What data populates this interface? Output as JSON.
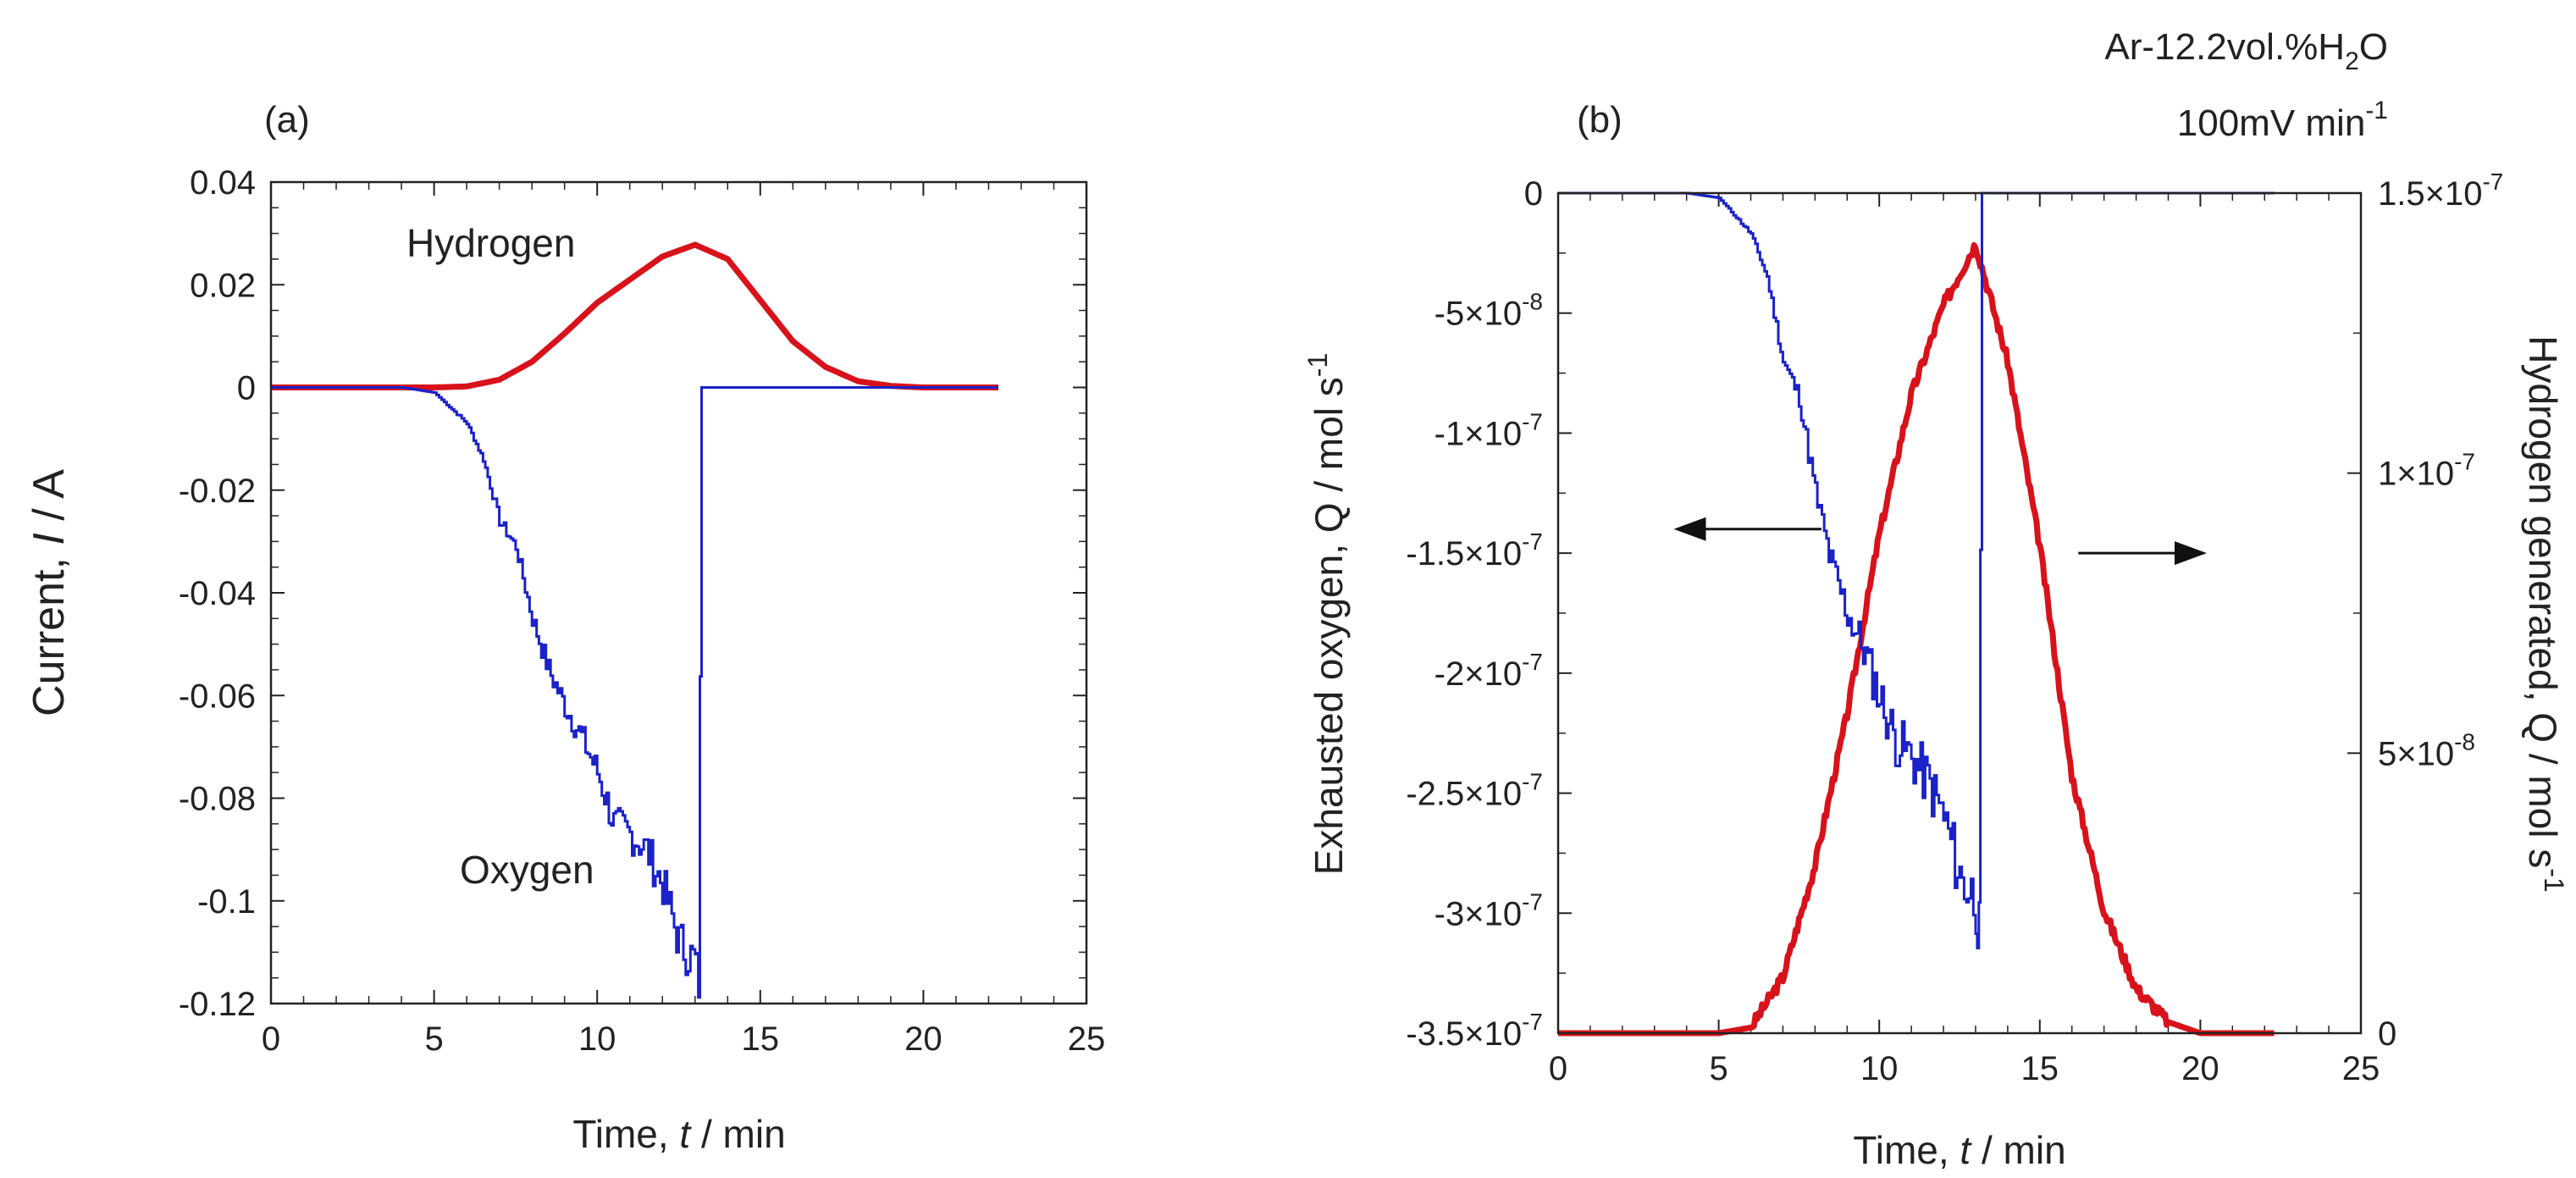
{
  "figure": {
    "conditions": {
      "gas_prefix": "Ar-12.2vol.%H",
      "gas_sub": "2",
      "gas_suffix": "O",
      "rate_prefix": "100mV min",
      "rate_sup": "-1"
    }
  },
  "colors": {
    "hydrogen": "#d8121b",
    "oxygen": "#1a22c8",
    "axis": "#222222"
  },
  "chart_data": [
    {
      "id": "a",
      "type": "line",
      "panel_label": "(a)",
      "xlabel": {
        "prefix": "Time, ",
        "var": "t",
        "suffix": " / min"
      },
      "ylabel": {
        "prefix": "Current, ",
        "var": "I",
        "suffix": " / A"
      },
      "xlim": [
        0,
        25
      ],
      "ylim": [
        -0.12,
        0.04
      ],
      "xticks": [
        0,
        5,
        10,
        15,
        20,
        25
      ],
      "xtick_labels": [
        "0",
        "5",
        "10",
        "15",
        "20",
        "25"
      ],
      "yticks": [
        0.04,
        0.02,
        0,
        -0.02,
        -0.04,
        -0.06,
        -0.08,
        -0.1,
        -0.12
      ],
      "ytick_labels": [
        "0.04",
        "0.02",
        "0",
        "-0.02",
        "-0.04",
        "-0.06",
        "-0.08",
        "-0.1",
        "-0.12"
      ],
      "series": [
        {
          "name": "Hydrogen",
          "color": "#d8121b",
          "x": [
            0,
            5,
            6,
            7,
            8,
            9,
            10,
            11,
            12,
            13,
            14,
            15,
            16,
            17,
            18,
            19,
            20,
            21,
            22.3
          ],
          "y": [
            0,
            0,
            0.0002,
            0.0015,
            0.005,
            0.0105,
            0.0165,
            0.021,
            0.0255,
            0.0278,
            0.025,
            0.017,
            0.009,
            0.004,
            0.0012,
            0.0003,
            0,
            0,
            0
          ]
        },
        {
          "name": "Oxygen",
          "color": "#1a22c8",
          "x": [
            0,
            4,
            5,
            6,
            6.5,
            7,
            7.5,
            8,
            8.5,
            9,
            9.5,
            10,
            10.5,
            11,
            11.5,
            12,
            12.5,
            13,
            13.1,
            13.2,
            15,
            22.3
          ],
          "y": [
            0,
            0,
            -0.001,
            -0.007,
            -0.014,
            -0.026,
            -0.031,
            -0.045,
            -0.055,
            -0.062,
            -0.068,
            -0.075,
            -0.085,
            -0.087,
            -0.09,
            -0.097,
            -0.108,
            -0.112,
            -0.116,
            0,
            0,
            0
          ]
        }
      ]
    },
    {
      "id": "b",
      "type": "line",
      "panel_label": "(b)",
      "xlabel": {
        "prefix": "Time, ",
        "var": "t",
        "suffix": " / min"
      },
      "ylabel_left": {
        "text": "Exhausted oxygen, Q / mol s",
        "sup": "-1"
      },
      "ylabel_right": {
        "text": "Hydrogen generated, Q / mol s",
        "sup": "-1"
      },
      "xlim": [
        0,
        25
      ],
      "ylim_left": [
        -3.5e-07,
        0
      ],
      "ylim_right": [
        0,
        1.5e-07
      ],
      "xticks": [
        0,
        5,
        10,
        15,
        20,
        25
      ],
      "xtick_labels": [
        "0",
        "5",
        "10",
        "15",
        "20",
        "25"
      ],
      "yticks_left": [
        0,
        -5e-08,
        -1e-07,
        -1.5e-07,
        -2e-07,
        -2.5e-07,
        -3e-07,
        -3.5e-07
      ],
      "ytick_labels_left": [
        {
          "m": "0",
          "e": ""
        },
        {
          "m": "-5×10",
          "e": "-8"
        },
        {
          "m": "-1×10",
          "e": "-7"
        },
        {
          "m": "-1.5×10",
          "e": "-7"
        },
        {
          "m": "-2×10",
          "e": "-7"
        },
        {
          "m": "-2.5×10",
          "e": "-7"
        },
        {
          "m": "-3×10",
          "e": "-7"
        },
        {
          "m": "-3.5×10",
          "e": "-7"
        }
      ],
      "yticks_right": [
        1.5e-07,
        1e-07,
        5e-08,
        0
      ],
      "ytick_labels_right": [
        {
          "m": "1.5×10",
          "e": "-7"
        },
        {
          "m": "1×10",
          "e": "-7"
        },
        {
          "m": "5×10",
          "e": "-8"
        },
        {
          "m": "0",
          "e": ""
        }
      ],
      "annotations": [
        {
          "name": "left-arrow",
          "direction": "left",
          "points_to": "left axis",
          "x_from": 8.2,
          "x_to": 3.6,
          "y_left": -1.4e-07
        },
        {
          "name": "right-arrow",
          "direction": "right",
          "points_to": "right axis",
          "x_from": 16.2,
          "x_to": 20.2,
          "y_left": -1.5e-07
        }
      ],
      "series": [
        {
          "name": "Exhausted oxygen",
          "axis": "left",
          "color": "#1a22c8",
          "x": [
            0,
            4,
            5,
            6,
            6.5,
            7,
            7.5,
            8,
            8.5,
            9,
            9.5,
            10,
            10.5,
            11,
            11.5,
            12,
            12.5,
            13,
            13.1,
            13.2,
            15,
            22.3
          ],
          "y": [
            0,
            0,
            -2e-09,
            -1.7e-08,
            -3.5e-08,
            -7e-08,
            -8.5e-08,
            -1.25e-07,
            -1.55e-07,
            -1.75e-07,
            -1.9e-07,
            -2.1e-07,
            -2.28e-07,
            -2.35e-07,
            -2.45e-07,
            -2.6e-07,
            -2.85e-07,
            -2.95e-07,
            -3.1e-07,
            0,
            0,
            0
          ]
        },
        {
          "name": "Hydrogen generated",
          "axis": "right",
          "color": "#d8121b",
          "x": [
            0,
            5,
            6,
            7,
            8,
            9,
            10,
            11,
            12,
            13,
            14,
            15,
            16,
            17,
            18,
            19,
            20,
            21,
            22.3
          ],
          "y": [
            0,
            0,
            1e-09,
            1e-08,
            3e-08,
            5.7e-08,
            8.9e-08,
            1.14e-07,
            1.3e-07,
            1.41e-07,
            1.2e-07,
            8.7e-08,
            4.6e-08,
            2.2e-08,
            8e-09,
            2e-09,
            0,
            0,
            0
          ]
        }
      ]
    }
  ]
}
